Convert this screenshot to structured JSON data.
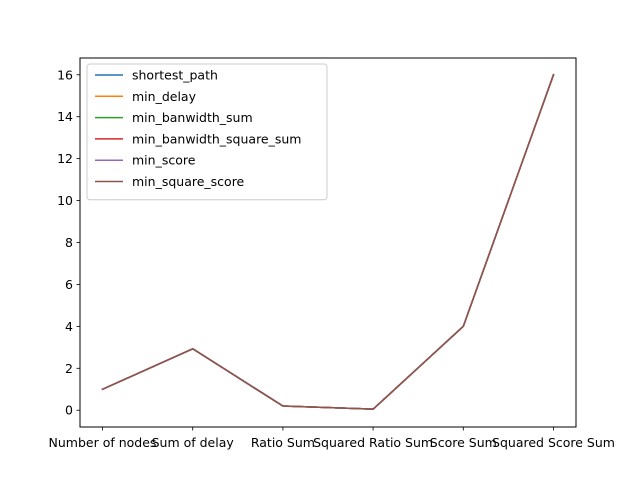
{
  "chart_data": {
    "type": "line",
    "title": "",
    "xlabel": "",
    "ylabel": "",
    "categories": [
      "Number of nodes",
      "Sum of delay",
      "Ratio Sum",
      "Squared Ratio Sum",
      "Score Sum",
      "Squared Score Sum"
    ],
    "ylim": [
      -0.8,
      16.8
    ],
    "yticks": [
      0,
      2,
      4,
      6,
      8,
      10,
      12,
      14,
      16
    ],
    "grid": false,
    "legend_position": "top-left",
    "series": [
      {
        "name": "shortest_path",
        "color": "#1f77b4",
        "values": [
          1.0,
          2.93,
          0.2,
          0.05,
          4.0,
          16.0
        ]
      },
      {
        "name": "min_delay",
        "color": "#ff7f0e",
        "values": [
          1.0,
          2.93,
          0.2,
          0.05,
          4.0,
          16.0
        ]
      },
      {
        "name": "min_banwidth_sum",
        "color": "#2ca02c",
        "values": [
          1.0,
          2.93,
          0.2,
          0.05,
          4.0,
          16.0
        ]
      },
      {
        "name": "min_banwidth_square_sum",
        "color": "#d62728",
        "values": [
          1.0,
          2.93,
          0.2,
          0.05,
          4.0,
          16.0
        ]
      },
      {
        "name": "min_score",
        "color": "#9467bd",
        "values": [
          1.0,
          2.93,
          0.2,
          0.05,
          4.0,
          16.0
        ]
      },
      {
        "name": "min_square_score",
        "color": "#8c564b",
        "values": [
          1.0,
          2.93,
          0.2,
          0.05,
          4.0,
          16.0
        ]
      }
    ]
  }
}
